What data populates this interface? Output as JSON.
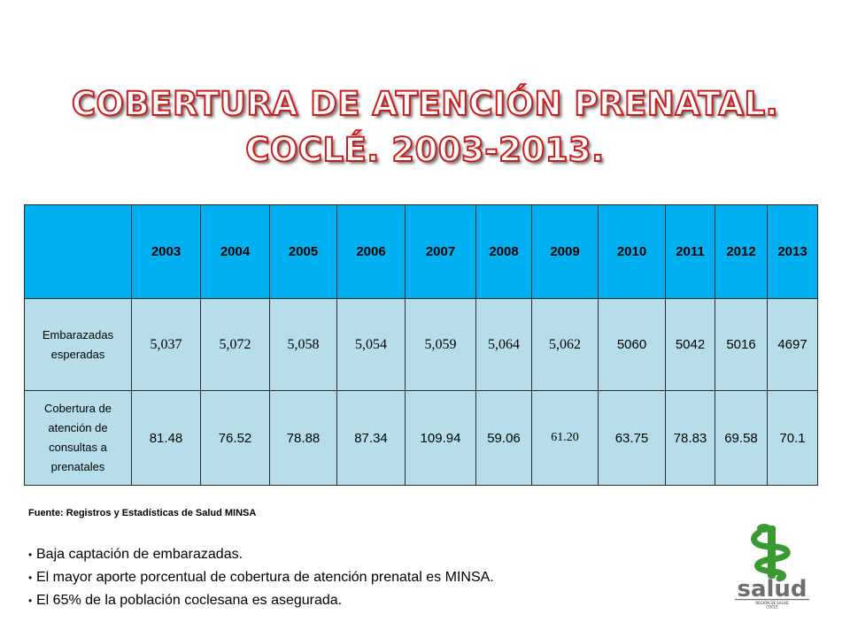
{
  "title": {
    "line1": "COBERTURA DE ATENCIÓN PRENATAL.",
    "line2": "COCLÉ. 2003-2013."
  },
  "table": {
    "years": [
      "2003",
      "2004",
      "2005",
      "2006",
      "2007",
      "2008",
      "2009",
      "2010",
      "2011",
      "2012",
      "2013"
    ],
    "rows": [
      {
        "label": "Embarazadas esperadas",
        "values": [
          "5,037",
          "5,072",
          "5,058",
          "5,054",
          "5,059",
          "5,064",
          "5,062",
          "5060",
          "5042",
          "5016",
          "4697"
        ]
      },
      {
        "label": "Cobertura de atención de consultas a prenatales",
        "values": [
          "81.48",
          "76.52",
          "78.88",
          "87.34",
          "109.94",
          "59.06",
          "61.20",
          "63.75",
          "78.83",
          "69.58",
          "70.1"
        ]
      }
    ]
  },
  "source": "Fuente: Registros y Estadísticas de Salud MINSA",
  "bullets": [
    "Baja captación de embarazadas.",
    "El mayor aporte porcentual de cobertura de atención prenatal es MINSA.",
    "El 65% de la población coclesana es asegurada."
  ],
  "logo": {
    "wordmark": "salud",
    "subtitle": "REGIÓN DE SALUD COCLÉ"
  },
  "colors": {
    "header_fill": "#00b0f0",
    "body_fill": "#b7dee8",
    "title_outline": "#ce1c1c",
    "logo_green": "#3a9a32",
    "logo_gray": "#6d6e71"
  }
}
